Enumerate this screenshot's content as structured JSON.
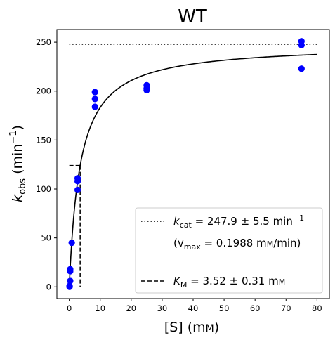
{
  "chart_data": {
    "type": "scatter",
    "title": "WT",
    "xlabel": {
      "pre": "[S] (m",
      "unit_sc": "M",
      "post": ")"
    },
    "ylabel": {
      "k": "k",
      "sub": "obs",
      "mid": " (min",
      "sup": "−1",
      "post": ")"
    },
    "xlim": [
      -4,
      84
    ],
    "ylim": [
      -12,
      263
    ],
    "xticks": [
      0,
      10,
      20,
      30,
      40,
      50,
      60,
      70,
      80
    ],
    "yticks": [
      0,
      50,
      100,
      150,
      200,
      250
    ],
    "grid": false,
    "points": {
      "color": "#0000ff",
      "x": [
        0.1,
        0.1,
        0.1,
        0.3,
        0.3,
        0.3,
        0.8,
        2.7,
        2.7,
        2.7,
        8.3,
        8.3,
        8.3,
        25,
        25,
        25,
        75,
        75,
        75
      ],
      "y": [
        0,
        1,
        0.5,
        18,
        16,
        6,
        45,
        111,
        108,
        99,
        199,
        192,
        184,
        206,
        203,
        201,
        251,
        247,
        223
      ]
    },
    "fit": {
      "type": "michaelis-menten",
      "kcat": 247.9,
      "KM": 3.52,
      "xmin": 0,
      "xmax": 80,
      "color": "#000000"
    },
    "kcat_line": {
      "y": 247.9,
      "x": [
        0,
        80
      ],
      "style": "dotted"
    },
    "km_lines": {
      "x": 3.52,
      "y": 123.95,
      "x_from": 0,
      "style": "dashed"
    },
    "legend": {
      "placement": "lower-right",
      "entries": [
        {
          "k": "k",
          "sub": "cat",
          "text": " = 247.9 ± 5.5 min",
          "sup": "−1",
          "style": "dotted"
        },
        {
          "pre": "(v",
          "sub": "max",
          "text": " = 0.1988 m",
          "unit_sc": "M",
          "post": "/min)",
          "style": "none"
        },
        {
          "k": "K",
          "sub": "M",
          "text": " = 3.52 ± 0.31 m",
          "unit_sc": "M",
          "post": "",
          "style": "dashed"
        }
      ]
    }
  }
}
